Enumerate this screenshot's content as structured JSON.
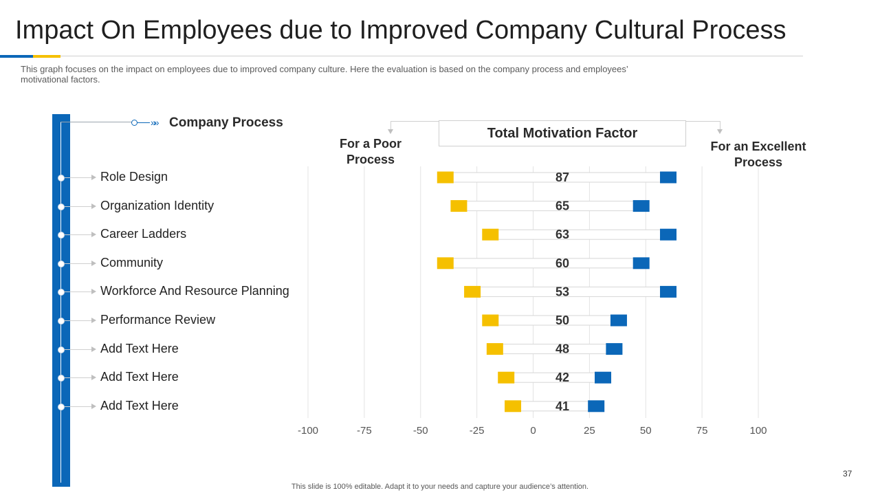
{
  "slide": {
    "title": "Impact On Employees due to Improved Company Cultural Process",
    "subtitle": "This graph focuses on the impact on employees due to improved company culture. Here the evaluation is based on the company process and employees’ motivational factors.",
    "footer": "This slide is 100% editable. Adapt it to your needs and capture your audience’s attention.",
    "page_number": "37",
    "company_process_label": "Company Process",
    "header_total": "Total Motivation Factor",
    "header_poor": "For a Poor Process",
    "header_excellent": "For an Excellent Process",
    "colors": {
      "accent_blue": "#0b67b8",
      "accent_yellow": "#f5c000",
      "grid": "#e3e3e3"
    }
  },
  "chart_data": {
    "type": "bar",
    "title": "Total Motivation Factor",
    "categories": [
      "Role Design",
      "Organization Identity",
      "Career Ladders",
      "Community",
      "Workforce And Resource Planning",
      "Performance Review",
      "Add Text Here",
      "Add Text Here",
      "Add Text Here"
    ],
    "totals": [
      "87",
      "65",
      "63",
      "60",
      "53",
      "50",
      "48",
      "42",
      "41"
    ],
    "series": [
      {
        "name": "For a Poor Process",
        "color": "#f5c000",
        "values": [
          -39,
          -33,
          -19,
          -39,
          -27,
          -19,
          -17,
          -12,
          -9
        ]
      },
      {
        "name": "For an Excellent Process",
        "color": "#0b67b8",
        "values": [
          60,
          48,
          60,
          48,
          60,
          38,
          36,
          31,
          28
        ]
      }
    ],
    "xlim": [
      -100,
      100
    ],
    "xticks": [
      "-100",
      "-75",
      "-50",
      "-25",
      "0",
      "25",
      "50",
      "75",
      "100"
    ],
    "grid": true
  }
}
